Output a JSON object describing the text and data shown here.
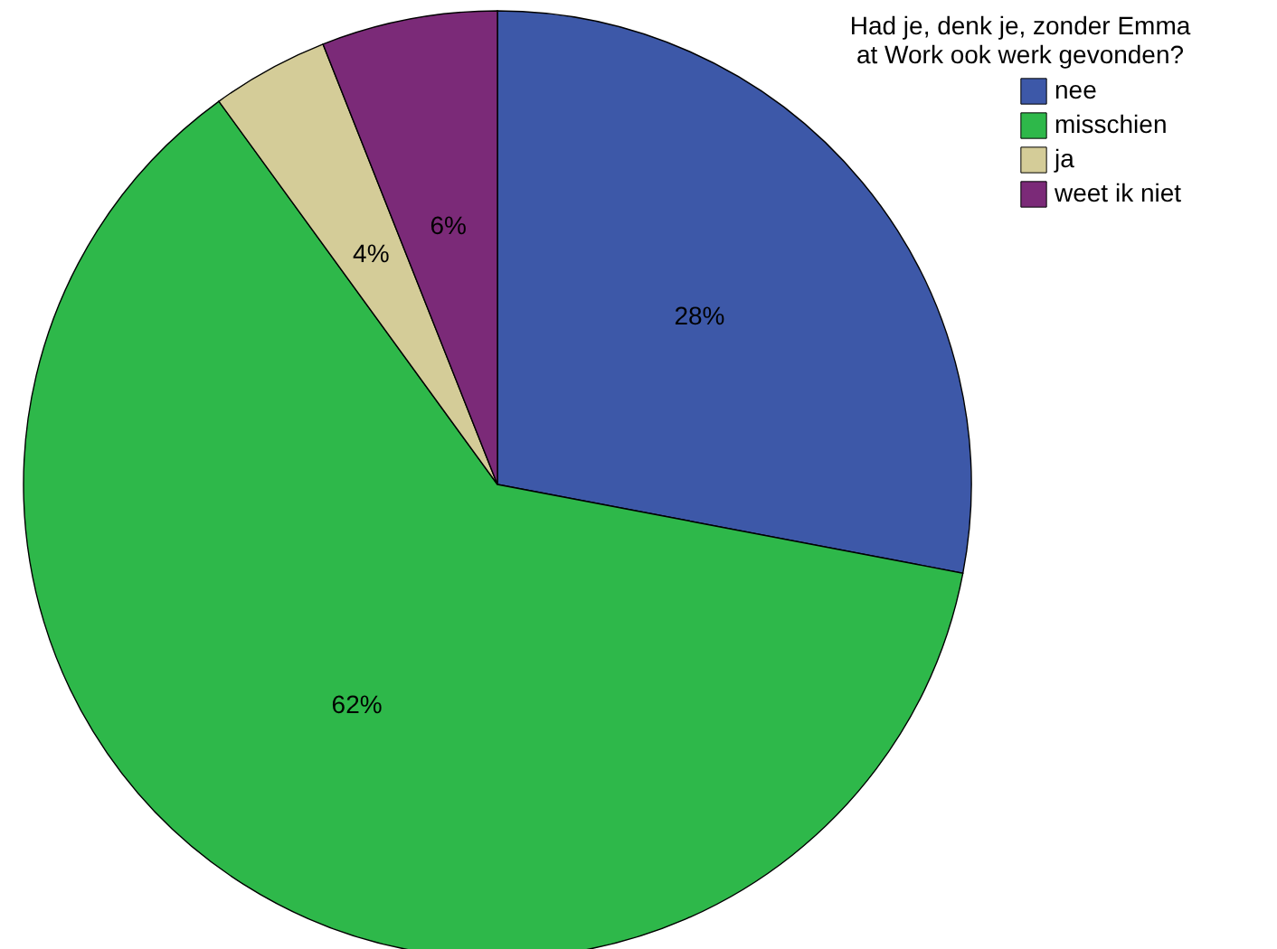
{
  "chart_data": {
    "type": "pie",
    "legend_title": "Had je, denk je, zonder Emma at Work ook werk gevonden?",
    "legend": "top right",
    "categories": [
      "nee",
      "misschien",
      "ja",
      "weet ik niet"
    ],
    "values": [
      28,
      62,
      4,
      6
    ],
    "colors": [
      "#3d58a8",
      "#2eb84a",
      "#d4cc98",
      "#7b2a78"
    ],
    "value_labels": [
      "28%",
      "62%",
      "4%",
      "6%"
    ]
  }
}
